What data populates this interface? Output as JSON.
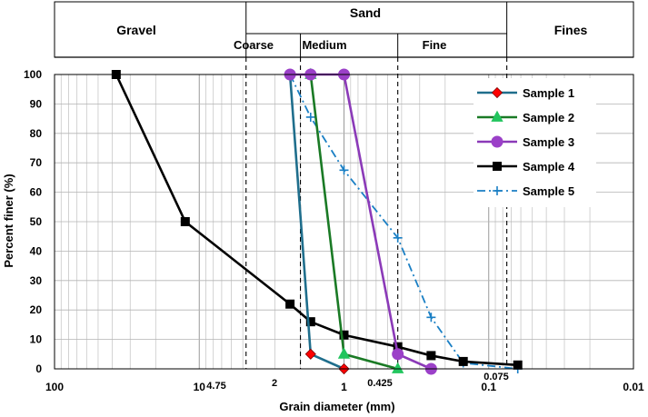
{
  "chart_data": {
    "type": "line",
    "x_scale": "log",
    "x_reversed": true,
    "xlim": [
      100,
      0.01
    ],
    "ylim": [
      0,
      100
    ],
    "xlabel": "Grain diameter (mm)",
    "ylabel": "Percent finer (%)",
    "x_tick_labels": [
      "100",
      "10",
      "1",
      "0.1",
      "0.01"
    ],
    "x_tick_values": [
      100,
      10,
      1,
      0.1,
      0.01
    ],
    "y_tick_labels": [
      "0",
      "10",
      "20",
      "30",
      "40",
      "50",
      "60",
      "70",
      "80",
      "90",
      "100"
    ],
    "y_tick_values": [
      0,
      10,
      20,
      30,
      40,
      50,
      60,
      70,
      80,
      90,
      100
    ],
    "grid": true,
    "legend_position": "right",
    "boundaries": [
      {
        "x": 4.75,
        "label": "4.75"
      },
      {
        "x": 2,
        "label": "2"
      },
      {
        "x": 0.425,
        "label": "0.425"
      },
      {
        "x": 0.075,
        "label": "0.075"
      }
    ],
    "header": {
      "gravel": "Gravel",
      "sand": "Sand",
      "fines": "Fines",
      "coarse": "Coarse",
      "medium": "Medium",
      "fine": "Fine"
    },
    "series": [
      {
        "name": "Sample 1",
        "color": "#1f6e8c",
        "marker": "diamond",
        "marker_color": "#ff0000",
        "dash": "solid",
        "points": [
          [
            2.36,
            100
          ],
          [
            1.7,
            5
          ],
          [
            1.0,
            0
          ]
        ]
      },
      {
        "name": "Sample 2",
        "color": "#1a7a25",
        "marker": "triangle",
        "marker_color": "#22c55e",
        "dash": "solid",
        "points": [
          [
            1.7,
            100
          ],
          [
            1.0,
            5
          ],
          [
            0.425,
            0
          ]
        ]
      },
      {
        "name": "Sample 3",
        "color": "#8b3ab8",
        "marker": "circle",
        "marker_color": "#9b40c8",
        "dash": "solid",
        "points": [
          [
            2.36,
            100
          ],
          [
            1.7,
            100
          ],
          [
            1.0,
            100
          ],
          [
            0.425,
            5
          ],
          [
            0.25,
            0
          ]
        ]
      },
      {
        "name": "Sample 4",
        "color": "#000000",
        "marker": "square",
        "marker_color": "#000000",
        "dash": "solid",
        "points": [
          [
            37.5,
            100
          ],
          [
            12.5,
            50
          ],
          [
            2.36,
            22
          ],
          [
            1.7,
            16
          ],
          [
            1.0,
            11.5
          ],
          [
            0.425,
            7.5
          ],
          [
            0.25,
            4.5
          ],
          [
            0.15,
            2.5
          ],
          [
            0.063,
            1.3
          ]
        ]
      },
      {
        "name": "Sample 5",
        "color": "#1a7fc4",
        "marker": "plus",
        "marker_color": "#1a7fc4",
        "dash": "dashdot",
        "points": [
          [
            2.36,
            100
          ],
          [
            1.7,
            85.5
          ],
          [
            1.0,
            67.5
          ],
          [
            0.425,
            44.5
          ],
          [
            0.25,
            17.5
          ],
          [
            0.15,
            2
          ],
          [
            0.063,
            0
          ]
        ]
      }
    ]
  }
}
